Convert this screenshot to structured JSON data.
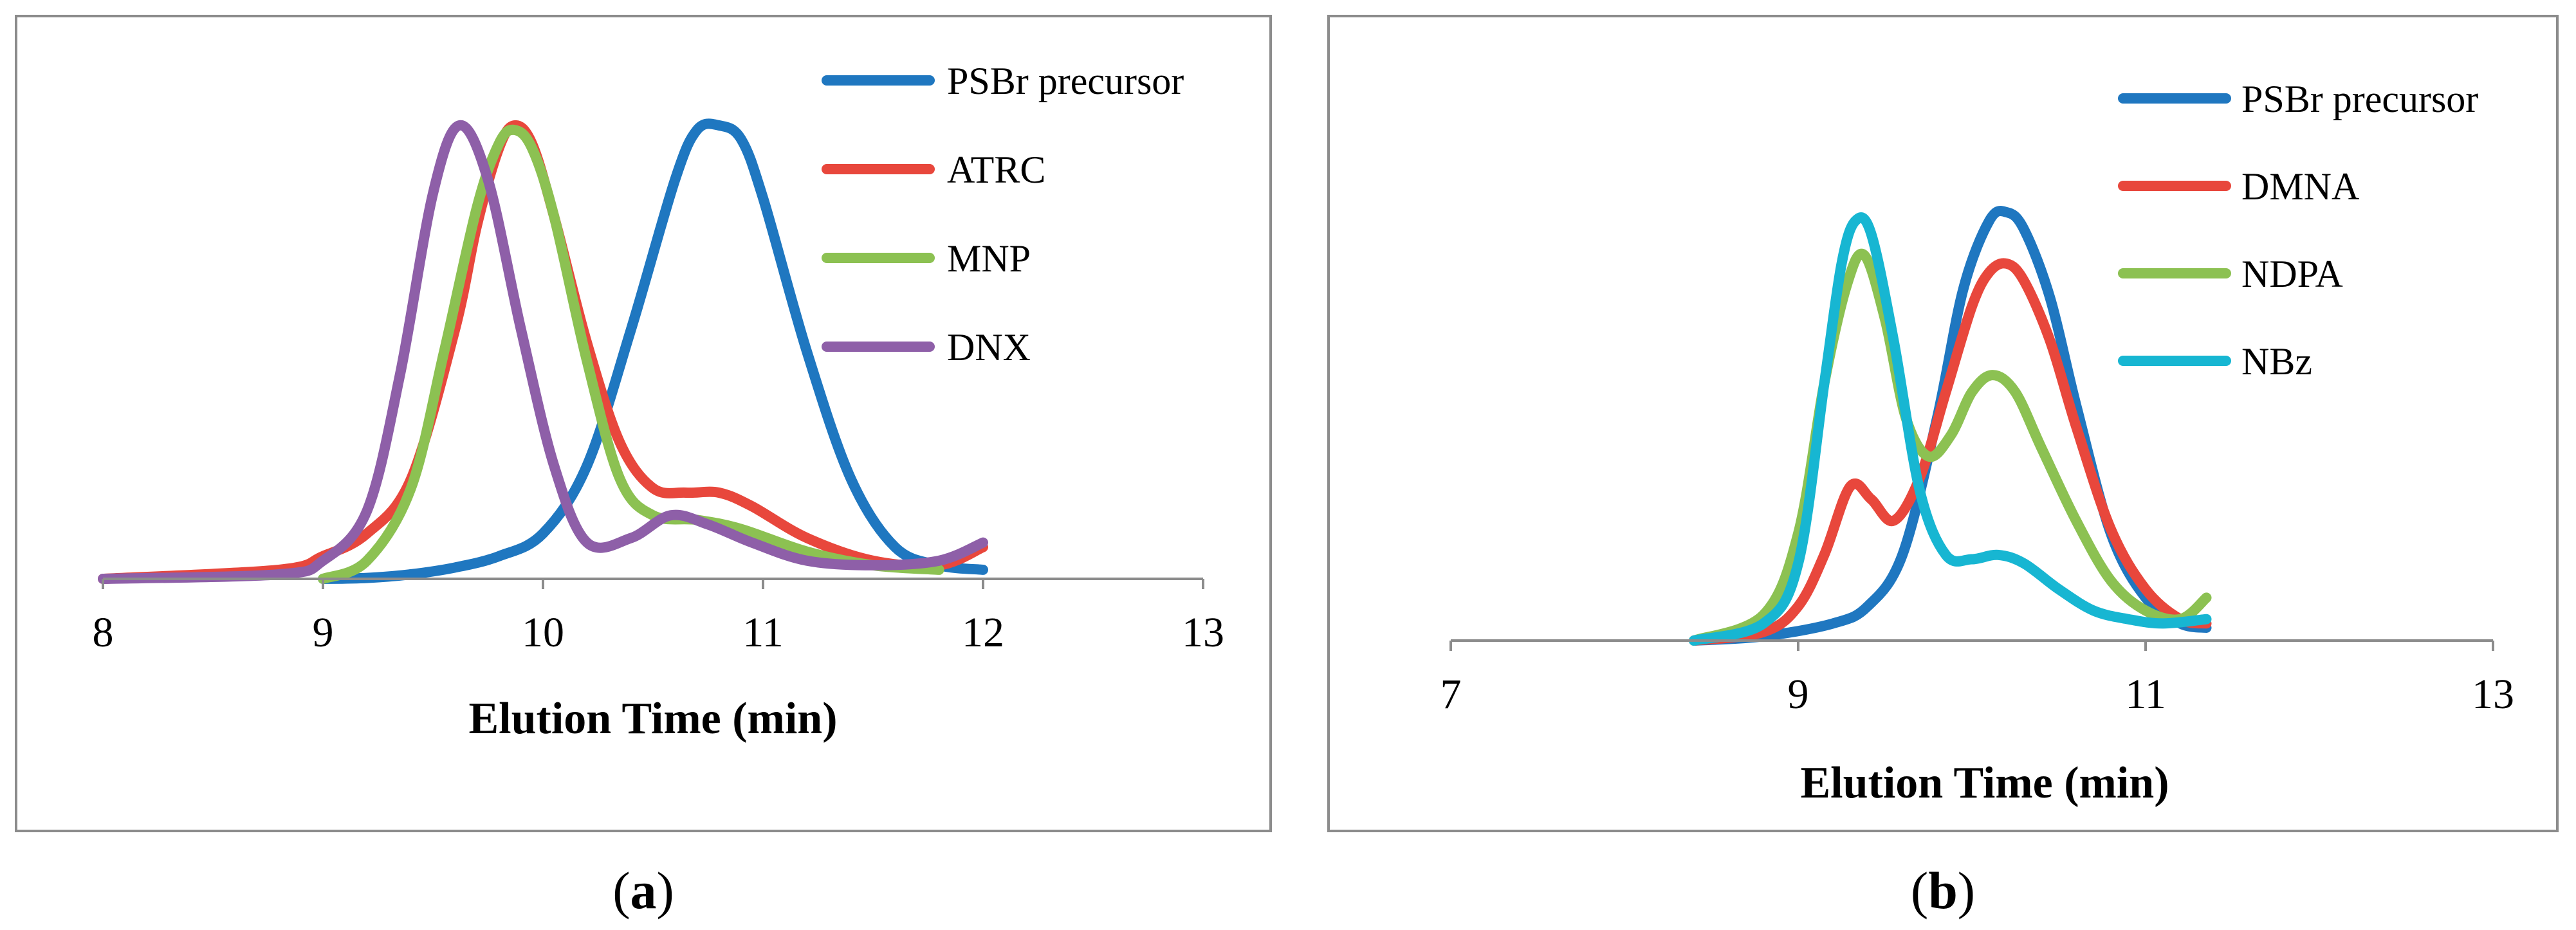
{
  "chart_data": [
    {
      "type": "line",
      "panel": "a",
      "caption_open": "(",
      "caption_letter": "a",
      "caption_close": ")",
      "title": "",
      "xlabel": "Elution Time (min)",
      "ylabel": "",
      "xlim": [
        8,
        13
      ],
      "ylim": [
        0,
        1.05
      ],
      "xticks": [
        8,
        9,
        10,
        11,
        12,
        13
      ],
      "legend_position": "top-right",
      "series": [
        {
          "name": "PSBr precursor",
          "color": "#1f77c0",
          "x": [
            9.0,
            9.2,
            9.4,
            9.6,
            9.8,
            10.0,
            10.2,
            10.4,
            10.6,
            10.7,
            10.8,
            10.9,
            11.0,
            11.2,
            11.4,
            11.6,
            11.8,
            12.0
          ],
          "y": [
            0.0,
            0.002,
            0.01,
            0.025,
            0.05,
            0.1,
            0.25,
            0.55,
            0.88,
            0.99,
            1.0,
            0.97,
            0.84,
            0.5,
            0.22,
            0.07,
            0.03,
            0.02
          ]
        },
        {
          "name": "ATRC",
          "color": "#e8473c",
          "x": [
            8.0,
            8.8,
            9.0,
            9.2,
            9.4,
            9.6,
            9.7,
            9.8,
            9.87,
            9.95,
            10.05,
            10.2,
            10.35,
            10.5,
            10.65,
            10.8,
            10.95,
            11.2,
            11.5,
            11.8,
            12.0
          ],
          "y": [
            0.0,
            0.02,
            0.05,
            0.1,
            0.22,
            0.55,
            0.78,
            0.95,
            1.0,
            0.96,
            0.8,
            0.52,
            0.3,
            0.2,
            0.19,
            0.19,
            0.16,
            0.09,
            0.04,
            0.03,
            0.07
          ]
        },
        {
          "name": "MNP",
          "color": "#8cc152",
          "x": [
            9.0,
            9.2,
            9.4,
            9.55,
            9.7,
            9.8,
            9.87,
            9.95,
            10.05,
            10.2,
            10.35,
            10.5,
            10.7,
            10.9,
            11.2,
            11.5,
            11.8
          ],
          "y": [
            0.0,
            0.04,
            0.2,
            0.5,
            0.82,
            0.96,
            0.99,
            0.95,
            0.8,
            0.48,
            0.22,
            0.14,
            0.13,
            0.11,
            0.06,
            0.03,
            0.02
          ]
        },
        {
          "name": "DNX",
          "color": "#8e5fa8",
          "x": [
            8.0,
            8.8,
            9.0,
            9.2,
            9.35,
            9.5,
            9.62,
            9.75,
            9.9,
            10.05,
            10.2,
            10.4,
            10.58,
            10.75,
            10.95,
            11.2,
            11.5,
            11.8,
            12.0
          ],
          "y": [
            0.0,
            0.01,
            0.04,
            0.15,
            0.45,
            0.85,
            1.0,
            0.88,
            0.55,
            0.25,
            0.08,
            0.09,
            0.14,
            0.12,
            0.08,
            0.04,
            0.03,
            0.04,
            0.08
          ]
        }
      ]
    },
    {
      "type": "line",
      "panel": "b",
      "caption_open": "(",
      "caption_letter": "b",
      "caption_close": ")",
      "title": "",
      "xlabel": "Elution Time (min)",
      "ylabel": "",
      "xlim": [
        7,
        13
      ],
      "ylim": [
        0,
        1.2
      ],
      "xticks": [
        7,
        9,
        11,
        13
      ],
      "legend_position": "top-right",
      "series": [
        {
          "name": "PSBr precursor",
          "color": "#1f77c0",
          "x": [
            8.4,
            8.8,
            9.2,
            9.4,
            9.6,
            9.8,
            9.95,
            10.1,
            10.2,
            10.3,
            10.45,
            10.6,
            10.8,
            11.0,
            11.2,
            11.35
          ],
          "y": [
            0.0,
            0.01,
            0.04,
            0.08,
            0.2,
            0.52,
            0.82,
            0.98,
            1.0,
            0.96,
            0.8,
            0.55,
            0.25,
            0.1,
            0.04,
            0.03
          ]
        },
        {
          "name": "DMNA",
          "color": "#e8473c",
          "x": [
            8.4,
            8.8,
            9.0,
            9.15,
            9.3,
            9.42,
            9.55,
            9.7,
            9.85,
            10.0,
            10.1,
            10.2,
            10.3,
            10.45,
            10.6,
            10.8,
            11.0,
            11.2,
            11.35
          ],
          "y": [
            0.0,
            0.02,
            0.08,
            0.2,
            0.36,
            0.33,
            0.28,
            0.38,
            0.58,
            0.78,
            0.86,
            0.88,
            0.84,
            0.7,
            0.5,
            0.26,
            0.12,
            0.05,
            0.04
          ]
        },
        {
          "name": "NDPA",
          "color": "#8cc152",
          "x": [
            8.4,
            8.8,
            9.0,
            9.15,
            9.28,
            9.38,
            9.5,
            9.62,
            9.75,
            9.88,
            10.0,
            10.12,
            10.25,
            10.4,
            10.6,
            10.8,
            11.0,
            11.2,
            11.35
          ],
          "y": [
            0.0,
            0.06,
            0.25,
            0.6,
            0.83,
            0.9,
            0.75,
            0.52,
            0.43,
            0.48,
            0.58,
            0.62,
            0.58,
            0.45,
            0.28,
            0.14,
            0.07,
            0.05,
            0.1
          ]
        },
        {
          "name": "NBz",
          "color": "#17b6d2",
          "x": [
            8.4,
            8.8,
            9.0,
            9.15,
            9.25,
            9.33,
            9.42,
            9.55,
            9.7,
            9.85,
            10.0,
            10.15,
            10.3,
            10.5,
            10.7,
            10.9,
            11.1,
            11.35
          ],
          "y": [
            0.0,
            0.04,
            0.18,
            0.6,
            0.88,
            0.98,
            0.95,
            0.7,
            0.35,
            0.2,
            0.19,
            0.2,
            0.18,
            0.12,
            0.07,
            0.05,
            0.04,
            0.05
          ]
        }
      ]
    }
  ]
}
